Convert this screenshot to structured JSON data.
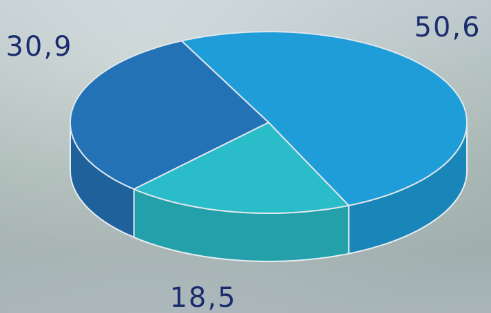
{
  "chart_data": {
    "type": "pie3d",
    "values": [
      50.6,
      18.5,
      30.9
    ],
    "value_labels": [
      "50,6",
      "18,5",
      "30,9"
    ],
    "colors": [
      "#1e9dd8",
      "#2abcc8",
      "#2472b6"
    ]
  }
}
